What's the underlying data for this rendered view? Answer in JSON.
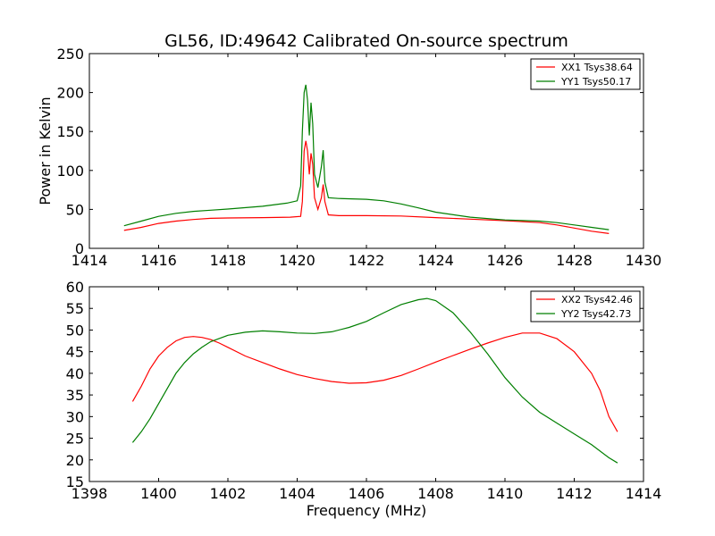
{
  "chart_data": [
    {
      "type": "line",
      "title": "GL56, ID:49642 Calibrated On-source spectrum",
      "xlabel": "",
      "ylabel": "Power in Kelvin",
      "xlim": [
        1414,
        1430
      ],
      "ylim": [
        0,
        250
      ],
      "xticks": [
        1414,
        1416,
        1418,
        1420,
        1422,
        1424,
        1426,
        1428,
        1430
      ],
      "yticks": [
        0,
        50,
        100,
        150,
        200,
        250
      ],
      "grid": false,
      "legend_position": "top-right",
      "series": [
        {
          "name": "XX1 Tsys38.64",
          "color": "#ff0000",
          "points": [
            [
              1415.0,
              23
            ],
            [
              1415.5,
              27
            ],
            [
              1416.0,
              32
            ],
            [
              1416.5,
              35
            ],
            [
              1417.0,
              37
            ],
            [
              1417.5,
              38.5
            ],
            [
              1418.0,
              39
            ],
            [
              1419.0,
              39.5
            ],
            [
              1419.8,
              40
            ],
            [
              1420.1,
              41
            ],
            [
              1420.15,
              60
            ],
            [
              1420.2,
              125
            ],
            [
              1420.25,
              138
            ],
            [
              1420.3,
              125
            ],
            [
              1420.35,
              95
            ],
            [
              1420.4,
              122
            ],
            [
              1420.45,
              108
            ],
            [
              1420.5,
              65
            ],
            [
              1420.6,
              50
            ],
            [
              1420.7,
              65
            ],
            [
              1420.75,
              82
            ],
            [
              1420.8,
              60
            ],
            [
              1420.9,
              43
            ],
            [
              1421.2,
              42
            ],
            [
              1422.0,
              42
            ],
            [
              1423.0,
              41.5
            ],
            [
              1424.0,
              39.5
            ],
            [
              1425.0,
              37.5
            ],
            [
              1426.0,
              35.5
            ],
            [
              1427.0,
              33
            ],
            [
              1427.5,
              30
            ],
            [
              1428.0,
              26
            ],
            [
              1428.5,
              22
            ],
            [
              1429.0,
              19
            ]
          ]
        },
        {
          "name": "YY1 Tsys50.17",
          "color": "#007f00",
          "points": [
            [
              1415.0,
              29
            ],
            [
              1415.5,
              35
            ],
            [
              1416.0,
              41
            ],
            [
              1416.5,
              45
            ],
            [
              1417.0,
              47.5
            ],
            [
              1417.5,
              49
            ],
            [
              1418.0,
              50.5
            ],
            [
              1419.0,
              54
            ],
            [
              1419.7,
              58
            ],
            [
              1420.0,
              61
            ],
            [
              1420.1,
              80
            ],
            [
              1420.15,
              150
            ],
            [
              1420.2,
              200
            ],
            [
              1420.25,
              210
            ],
            [
              1420.3,
              190
            ],
            [
              1420.35,
              145
            ],
            [
              1420.4,
              187
            ],
            [
              1420.45,
              160
            ],
            [
              1420.5,
              95
            ],
            [
              1420.6,
              78
            ],
            [
              1420.7,
              105
            ],
            [
              1420.75,
              126
            ],
            [
              1420.8,
              85
            ],
            [
              1420.9,
              65
            ],
            [
              1421.2,
              64
            ],
            [
              1422.0,
              63
            ],
            [
              1422.5,
              61
            ],
            [
              1423.0,
              57
            ],
            [
              1423.5,
              52
            ],
            [
              1424.0,
              46.5
            ],
            [
              1425.0,
              40
            ],
            [
              1426.0,
              36.5
            ],
            [
              1427.0,
              35
            ],
            [
              1427.5,
              33
            ],
            [
              1428.0,
              30
            ],
            [
              1428.5,
              27
            ],
            [
              1429.0,
              24
            ]
          ]
        }
      ]
    },
    {
      "type": "line",
      "title": "",
      "xlabel": "Frequency (MHz)",
      "ylabel": "",
      "xlim": [
        1398,
        1414
      ],
      "ylim": [
        15,
        60
      ],
      "xticks": [
        1398,
        1400,
        1402,
        1404,
        1406,
        1408,
        1410,
        1412,
        1414
      ],
      "yticks": [
        15,
        20,
        25,
        30,
        35,
        40,
        45,
        50,
        55,
        60
      ],
      "grid": false,
      "legend_position": "top-right",
      "series": [
        {
          "name": "XX2 Tsys42.46",
          "color": "#ff0000",
          "points": [
            [
              1399.25,
              33.5
            ],
            [
              1399.5,
              37
            ],
            [
              1399.75,
              41
            ],
            [
              1400.0,
              44
            ],
            [
              1400.25,
              46
            ],
            [
              1400.5,
              47.5
            ],
            [
              1400.75,
              48.3
            ],
            [
              1401.0,
              48.5
            ],
            [
              1401.25,
              48.3
            ],
            [
              1401.5,
              47.8
            ],
            [
              1401.75,
              47
            ],
            [
              1402.0,
              46
            ],
            [
              1402.5,
              44
            ],
            [
              1403.0,
              42.5
            ],
            [
              1403.5,
              41
            ],
            [
              1404.0,
              39.7
            ],
            [
              1404.5,
              38.8
            ],
            [
              1405.0,
              38.1
            ],
            [
              1405.5,
              37.7
            ],
            [
              1406.0,
              37.8
            ],
            [
              1406.5,
              38.4
            ],
            [
              1407.0,
              39.5
            ],
            [
              1407.5,
              41
            ],
            [
              1408.0,
              42.6
            ],
            [
              1408.5,
              44.1
            ],
            [
              1409.0,
              45.6
            ],
            [
              1409.5,
              47
            ],
            [
              1410.0,
              48.3
            ],
            [
              1410.5,
              49.3
            ],
            [
              1411.0,
              49.3
            ],
            [
              1411.5,
              48
            ],
            [
              1412.0,
              45
            ],
            [
              1412.5,
              40
            ],
            [
              1412.75,
              36
            ],
            [
              1413.0,
              30
            ],
            [
              1413.25,
              26.5
            ]
          ]
        },
        {
          "name": "YY2 Tsys42.73",
          "color": "#007f00",
          "points": [
            [
              1399.25,
              24
            ],
            [
              1399.5,
              26.5
            ],
            [
              1399.75,
              29.5
            ],
            [
              1400.0,
              33
            ],
            [
              1400.25,
              36.5
            ],
            [
              1400.5,
              40
            ],
            [
              1400.75,
              42.5
            ],
            [
              1401.0,
              44.5
            ],
            [
              1401.25,
              46
            ],
            [
              1401.5,
              47.3
            ],
            [
              1402.0,
              48.8
            ],
            [
              1402.5,
              49.5
            ],
            [
              1403.0,
              49.8
            ],
            [
              1403.5,
              49.6
            ],
            [
              1404.0,
              49.3
            ],
            [
              1404.5,
              49.2
            ],
            [
              1405.0,
              49.6
            ],
            [
              1405.5,
              50.6
            ],
            [
              1406.0,
              52
            ],
            [
              1406.5,
              54
            ],
            [
              1407.0,
              55.9
            ],
            [
              1407.5,
              57
            ],
            [
              1407.75,
              57.3
            ],
            [
              1408.0,
              56.8
            ],
            [
              1408.5,
              54
            ],
            [
              1409.0,
              49.5
            ],
            [
              1409.5,
              44.5
            ],
            [
              1410.0,
              39
            ],
            [
              1410.5,
              34.5
            ],
            [
              1411.0,
              31
            ],
            [
              1411.5,
              28.5
            ],
            [
              1412.0,
              26
            ],
            [
              1412.5,
              23.5
            ],
            [
              1413.0,
              20.5
            ],
            [
              1413.25,
              19.3
            ]
          ]
        }
      ]
    }
  ]
}
